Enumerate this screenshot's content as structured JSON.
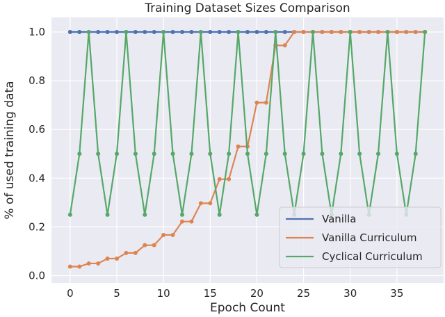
{
  "chart_data": {
    "type": "line",
    "title": "Training Dataset Sizes Comparison",
    "xlabel": "Epoch Count",
    "ylabel": "% of used training data",
    "xlim": [
      -2,
      40
    ],
    "ylim": [
      -0.03,
      1.06
    ],
    "xticks": [
      0,
      5,
      10,
      15,
      20,
      25,
      30,
      35
    ],
    "yticks": [
      0.0,
      0.2,
      0.4,
      0.6,
      0.8,
      1.0
    ],
    "xtick_labels": [
      "0",
      "5",
      "10",
      "15",
      "20",
      "25",
      "30",
      "35"
    ],
    "ytick_labels": [
      "0.0",
      "0.2",
      "0.4",
      "0.6",
      "0.8",
      "1.0"
    ],
    "grid": true,
    "legend_position": "lower-right",
    "series": [
      {
        "name": "Vanilla",
        "color": "#4c72b0",
        "x": [
          0,
          1,
          2,
          3,
          4,
          5,
          6,
          7,
          8,
          9,
          10,
          11,
          12,
          13,
          14,
          15,
          16,
          17,
          18,
          19,
          20,
          21,
          22,
          23,
          24,
          25,
          26,
          27,
          28,
          29,
          30,
          31,
          32,
          33,
          34,
          35,
          36,
          37,
          38
        ],
        "values": [
          1,
          1,
          1,
          1,
          1,
          1,
          1,
          1,
          1,
          1,
          1,
          1,
          1,
          1,
          1,
          1,
          1,
          1,
          1,
          1,
          1,
          1,
          1,
          1,
          1,
          1,
          1,
          1,
          1,
          1,
          1,
          1,
          1,
          1,
          1,
          1,
          1,
          1,
          1
        ]
      },
      {
        "name": "Vanilla Curriculum",
        "color": "#dd8452",
        "x": [
          0,
          1,
          2,
          3,
          4,
          5,
          6,
          7,
          8,
          9,
          10,
          11,
          12,
          13,
          14,
          15,
          16,
          17,
          18,
          19,
          20,
          21,
          22,
          23,
          24,
          25,
          26,
          27,
          28,
          29,
          30,
          31,
          32,
          33,
          34,
          35,
          36,
          37,
          38
        ],
        "values": [
          0.037,
          0.037,
          0.05,
          0.05,
          0.07,
          0.07,
          0.093,
          0.093,
          0.125,
          0.125,
          0.167,
          0.167,
          0.222,
          0.222,
          0.297,
          0.297,
          0.396,
          0.396,
          0.53,
          0.53,
          0.71,
          0.71,
          0.945,
          0.945,
          1,
          1,
          1,
          1,
          1,
          1,
          1,
          1,
          1,
          1,
          1,
          1,
          1,
          1,
          1
        ]
      },
      {
        "name": "Cyclical Curriculum",
        "color": "#55a868",
        "x": [
          0,
          1,
          2,
          3,
          4,
          5,
          6,
          7,
          8,
          9,
          10,
          11,
          12,
          13,
          14,
          15,
          16,
          17,
          18,
          19,
          20,
          21,
          22,
          23,
          24,
          25,
          26,
          27,
          28,
          29,
          30,
          31,
          32,
          33,
          34,
          35,
          36,
          37,
          38
        ],
        "values": [
          0.25,
          0.5,
          1,
          0.5,
          0.25,
          0.5,
          1,
          0.5,
          0.25,
          0.5,
          1,
          0.5,
          0.25,
          0.5,
          1,
          0.5,
          0.25,
          0.5,
          1,
          0.5,
          0.25,
          0.5,
          1,
          0.5,
          0.25,
          0.5,
          1,
          0.5,
          0.25,
          0.5,
          1,
          0.5,
          0.25,
          0.5,
          1,
          0.5,
          0.25,
          0.5,
          1
        ]
      }
    ]
  }
}
